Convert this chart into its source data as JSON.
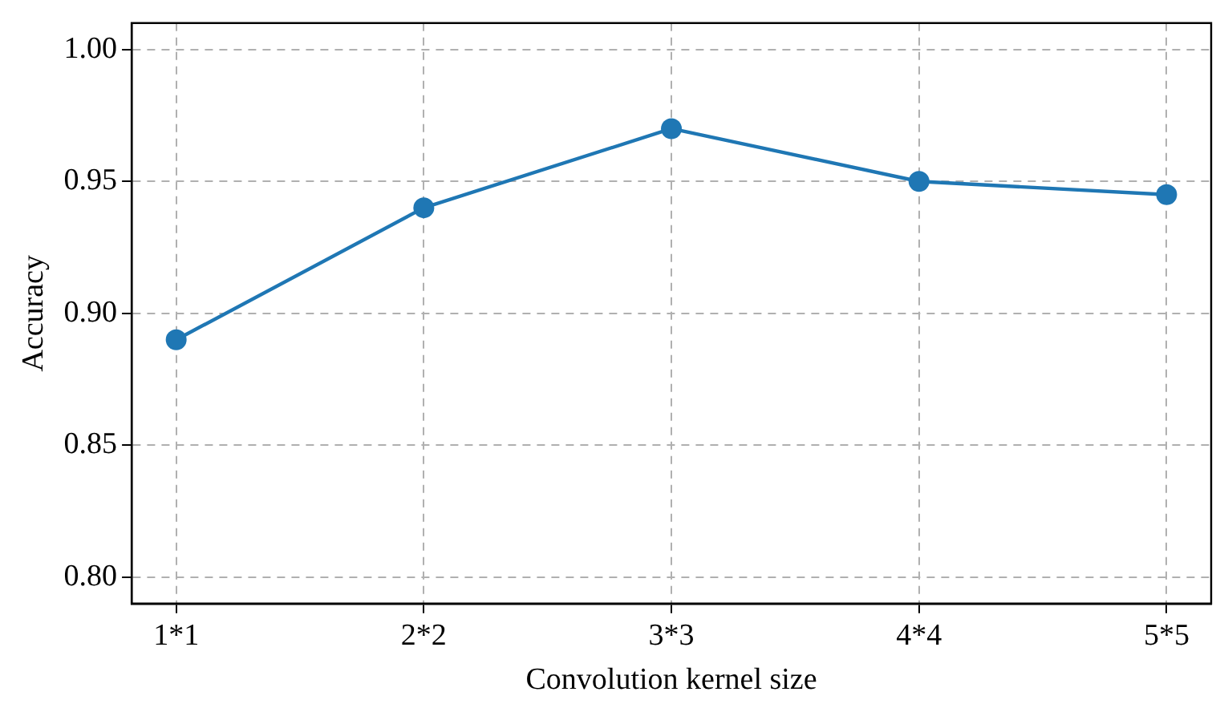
{
  "chart_data": {
    "type": "line",
    "xlabel": "Convolution kernel size",
    "ylabel": "Accuracy",
    "categories": [
      "1*1",
      "2*2",
      "3*3",
      "4*4",
      "5*5"
    ],
    "series": [
      {
        "color": "#1f77b4",
        "values": [
          0.89,
          0.94,
          0.97,
          0.95,
          0.945
        ]
      }
    ],
    "ylim": [
      0.79,
      1.01
    ],
    "yticks": [
      {
        "value": 0.8,
        "label": "0.80"
      },
      {
        "value": 0.85,
        "label": "0.85"
      },
      {
        "value": 0.9,
        "label": "0.90"
      },
      {
        "value": 0.95,
        "label": "0.95"
      },
      {
        "value": 1.0,
        "label": "1.00"
      }
    ],
    "grid": true,
    "marker": "circle",
    "line_style": "solid",
    "legend": false
  }
}
